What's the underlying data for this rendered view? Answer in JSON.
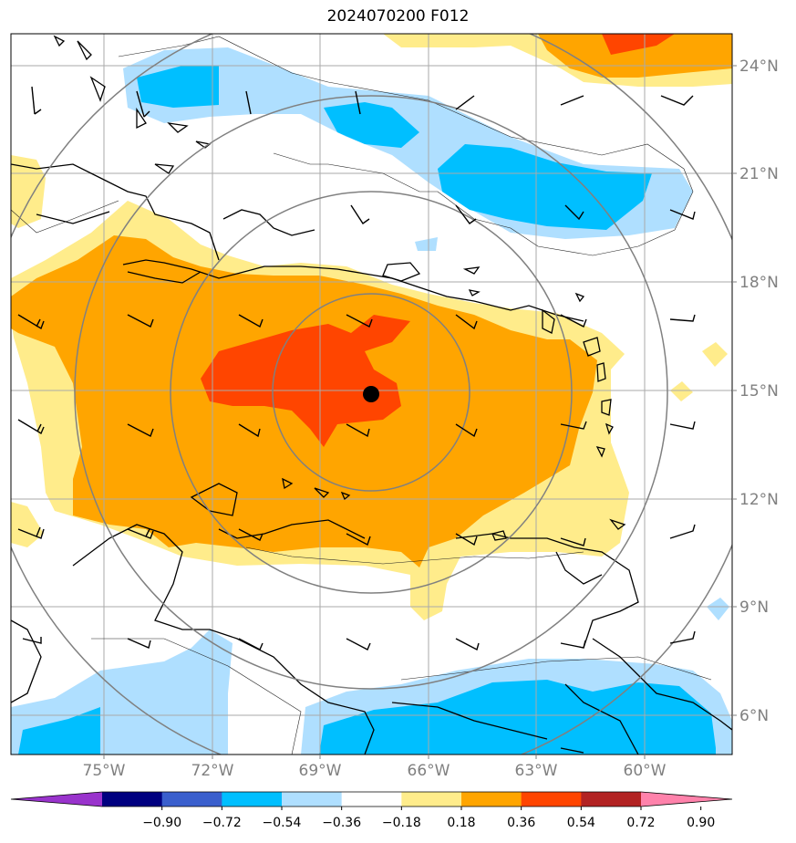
{
  "title": "2024070200 F012",
  "map": {
    "lat_labels": [
      "24°N",
      "21°N",
      "18°N",
      "15°N",
      "12°N",
      "9°N",
      "6°N"
    ],
    "lon_labels": [
      "75°W",
      "72°W",
      "69°W",
      "66°W",
      "63°W",
      "60°W"
    ],
    "center_marker": {
      "lat": 14.9,
      "lon": -67.5
    },
    "range_rings": 4
  },
  "colorbar": {
    "labels": [
      "−0.90",
      "−0.72",
      "−0.54",
      "−0.36",
      "−0.18",
      "0.18",
      "0.36",
      "0.54",
      "0.72",
      "0.90"
    ],
    "colors": [
      "#9933cc",
      "#000080",
      "#3a5fcd",
      "#00bfff",
      "#afdfff",
      "#ffffff",
      "#ffec8b",
      "#ffa500",
      "#ff4500",
      "#b22222",
      "#ff82ab"
    ],
    "levels": [
      -0.9,
      -0.72,
      -0.54,
      -0.36,
      -0.18,
      0.18,
      0.36,
      0.54,
      0.72,
      0.9
    ]
  }
}
